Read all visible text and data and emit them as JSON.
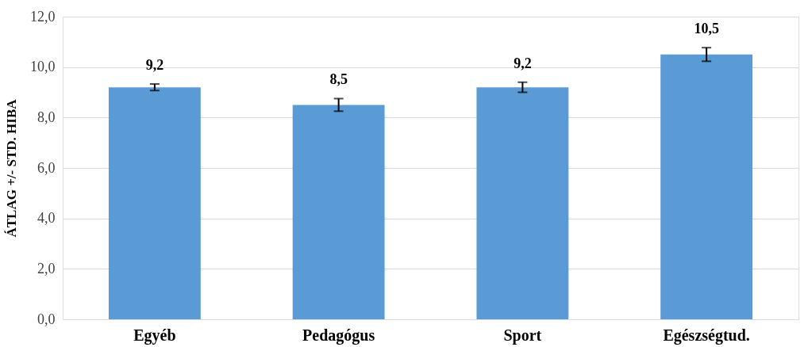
{
  "chart_data": {
    "type": "bar",
    "ylabel": "ÁTLAG +/- STD. HIBA",
    "categories": [
      "Egyéb",
      "Pedagógus",
      "Sport",
      "Egészségtud."
    ],
    "values": [
      9.2,
      8.5,
      9.2,
      10.5
    ],
    "errors": [
      0.13,
      0.25,
      0.2,
      0.27
    ],
    "value_labels": [
      "9,2",
      "8,5",
      "9,2",
      "10,5"
    ],
    "color": "#5b9bd5",
    "ylim": [
      0,
      12
    ],
    "yticks": [
      {
        "value": 0,
        "label": "0,0"
      },
      {
        "value": 2,
        "label": "2,0"
      },
      {
        "value": 4,
        "label": "4,0"
      },
      {
        "value": 6,
        "label": "6,0"
      },
      {
        "value": 8,
        "label": "8,0"
      },
      {
        "value": 10,
        "label": "10,0"
      },
      {
        "value": 12,
        "label": "12,0"
      }
    ],
    "grid": "y"
  }
}
